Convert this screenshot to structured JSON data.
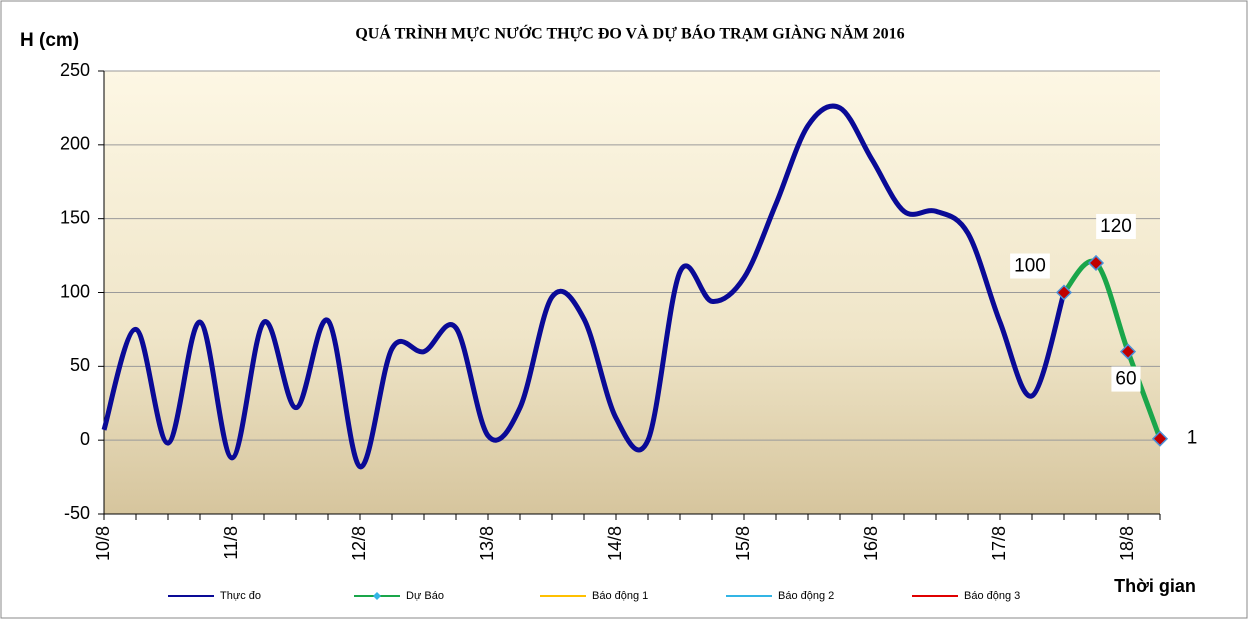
{
  "chart_data": {
    "type": "line",
    "title": "QUÁ TRÌNH MỰC NƯỚC THỰC ĐO VÀ DỰ BÁO TRẠM GIÀNG  NĂM 2016",
    "y_label": "H (cm)",
    "x_label": "Thời gian",
    "categories": [
      "10/8",
      null,
      null,
      null,
      "11/8",
      null,
      null,
      null,
      "12/8",
      null,
      null,
      null,
      "13/8",
      null,
      null,
      null,
      "14/8",
      null,
      null,
      null,
      "15/8",
      null,
      null,
      null,
      "16/8",
      null,
      null,
      null,
      "17/8",
      null,
      null,
      null,
      "18/8",
      null
    ],
    "series": [
      {
        "name": "Thực đo",
        "color": "#0a0a96",
        "values": [
          7,
          75,
          -2,
          80,
          -12,
          80,
          22,
          81,
          -18,
          62,
          60,
          76,
          3,
          22,
          97,
          82,
          15,
          0,
          114,
          94,
          110,
          160,
          213,
          225,
          190,
          155,
          155,
          140,
          80,
          30,
          100,
          null,
          null,
          null
        ]
      },
      {
        "name": "Dự Báo",
        "color": "#1aa64a",
        "marker": "diamond",
        "marker_color": "#c00000",
        "values": [
          null,
          null,
          null,
          null,
          null,
          null,
          null,
          null,
          null,
          null,
          null,
          null,
          null,
          null,
          null,
          null,
          null,
          null,
          null,
          null,
          null,
          null,
          null,
          null,
          null,
          null,
          null,
          null,
          null,
          null,
          100,
          120,
          60,
          1
        ],
        "data_labels": true
      },
      {
        "name": "Báo động 1",
        "color": "#ffc000",
        "values": [
          null,
          null,
          null,
          null,
          null,
          null,
          null,
          null,
          null,
          null,
          null,
          null,
          null,
          null,
          null,
          null,
          null,
          null,
          null,
          null,
          null,
          null,
          null,
          null,
          null,
          null,
          null,
          null,
          null,
          null,
          null,
          null,
          null,
          null
        ]
      },
      {
        "name": "Báo động 2",
        "color": "#33b5e5",
        "values": [
          null,
          null,
          null,
          null,
          null,
          null,
          null,
          null,
          null,
          null,
          null,
          null,
          null,
          null,
          null,
          null,
          null,
          null,
          null,
          null,
          null,
          null,
          null,
          null,
          null,
          null,
          null,
          null,
          null,
          null,
          null,
          null,
          null,
          null
        ]
      },
      {
        "name": "Báo động 3",
        "color": "#e00000",
        "values": [
          null,
          null,
          null,
          null,
          null,
          null,
          null,
          null,
          null,
          null,
          null,
          null,
          null,
          null,
          null,
          null,
          null,
          null,
          null,
          null,
          null,
          null,
          null,
          null,
          null,
          null,
          null,
          null,
          null,
          null,
          null,
          null,
          null,
          null
        ]
      }
    ],
    "ylim": [
      -50,
      250
    ],
    "yticks": [
      -50,
      0,
      50,
      100,
      150,
      200,
      250
    ],
    "grid": true,
    "legend": "bottom"
  }
}
